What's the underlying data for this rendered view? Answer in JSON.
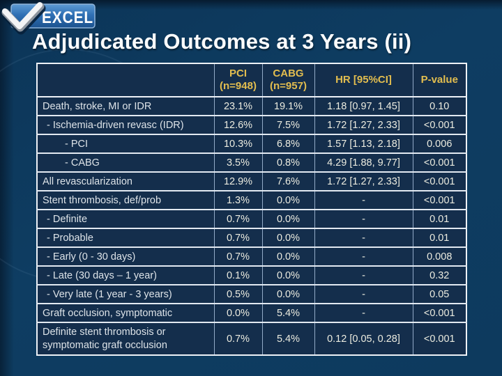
{
  "slide": {
    "logo_text": "EXCEL",
    "title": "Adjudicated Outcomes at 3 Years (ii)"
  },
  "colors": {
    "background": "#0d3a5e",
    "table_cell_background": "#142e4c",
    "header_text_gold": "#e2bd4f",
    "body_text": "#ecece0",
    "outer_border": "#eef2f7",
    "vertical_border": "#93abc8",
    "logo_blue_top": "#5e9bd3",
    "logo_blue_bottom": "#1c528e"
  },
  "table": {
    "column_keys": [
      "outcome",
      "pci",
      "cabg",
      "hr",
      "p-value"
    ],
    "columns": [
      "",
      "PCI\n(n=948)",
      "CABG\n(n=957)",
      "HR [95%CI]",
      "P-value"
    ],
    "rows": [
      {
        "label": "Death, stroke, MI or IDR",
        "indent": 0,
        "pci": "23.1%",
        "cabg": "19.1%",
        "hr": "1.18 [0.97, 1.45]",
        "p": "0.10"
      },
      {
        "label": "- Ischemia-driven revasc (IDR)",
        "indent": 1,
        "pci": "12.6%",
        "cabg": "7.5%",
        "hr": "1.72 [1.27, 2.33]",
        "p": "<0.001"
      },
      {
        "label": "- PCI",
        "indent": 2,
        "pci": "10.3%",
        "cabg": "6.8%",
        "hr": "1.57 [1.13, 2.18]",
        "p": "0.006"
      },
      {
        "label": "- CABG",
        "indent": 2,
        "pci": "3.5%",
        "cabg": "0.8%",
        "hr": "4.29 [1.88, 9.77]",
        "p": "<0.001"
      },
      {
        "label": "All revascularization",
        "indent": 0,
        "pci": "12.9%",
        "cabg": "7.6%",
        "hr": "1.72 [1.27, 2.33]",
        "p": "<0.001"
      },
      {
        "label": "Stent thrombosis, def/prob",
        "indent": 0,
        "pci": "1.3%",
        "cabg": "0.0%",
        "hr": "-",
        "p": "<0.001"
      },
      {
        "label": "- Definite",
        "indent": 1,
        "pci": "0.7%",
        "cabg": "0.0%",
        "hr": "-",
        "p": "0.01"
      },
      {
        "label": "- Probable",
        "indent": 1,
        "pci": "0.7%",
        "cabg": "0.0%",
        "hr": "-",
        "p": "0.01"
      },
      {
        "label": "- Early (0 - 30 days)",
        "indent": 1,
        "pci": "0.7%",
        "cabg": "0.0%",
        "hr": "-",
        "p": "0.008"
      },
      {
        "label": "- Late (30 days – 1 year)",
        "indent": 1,
        "pci": "0.1%",
        "cabg": "0.0%",
        "hr": "-",
        "p": "0.32"
      },
      {
        "label": "- Very late (1 year - 3 years)",
        "indent": 1,
        "pci": "0.5%",
        "cabg": "0.0%",
        "hr": "-",
        "p": "0.05"
      },
      {
        "label": "Graft occlusion, symptomatic",
        "indent": 0,
        "pci": "0.0%",
        "cabg": "5.4%",
        "hr": "-",
        "p": "<0.001"
      },
      {
        "label": "Definite stent thrombosis or symptomatic graft occlusion",
        "indent": 0,
        "pci": "0.7%",
        "cabg": "5.4%",
        "hr": "0.12 [0.05, 0.28]",
        "p": "<0.001",
        "tall": true
      }
    ]
  }
}
